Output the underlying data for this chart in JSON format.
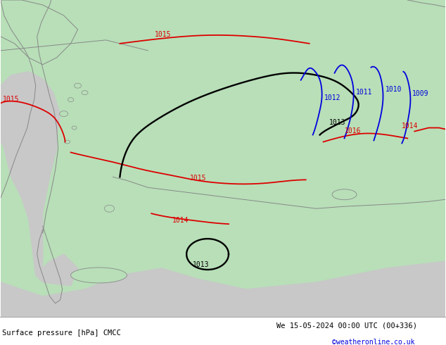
{
  "title_left": "Surface pressure [hPa] CMCC",
  "title_right": "We 15-05-2024 00:00 UTC (00+336)",
  "watermark": "©weatheronline.co.uk",
  "bg_color": "#b8dfb8",
  "land_color": "#b8dfb8",
  "sea_color": "#c8c8c8",
  "fig_width": 6.34,
  "fig_height": 4.9,
  "dpi": 100,
  "bottom_bar_color": "#f0f0f0",
  "red_color": "#dd0000",
  "black_color": "#000000",
  "blue_color": "#0000dd",
  "coast_color": "#888888",
  "font_size_iso": 7,
  "font_size_bottom": 7.5
}
